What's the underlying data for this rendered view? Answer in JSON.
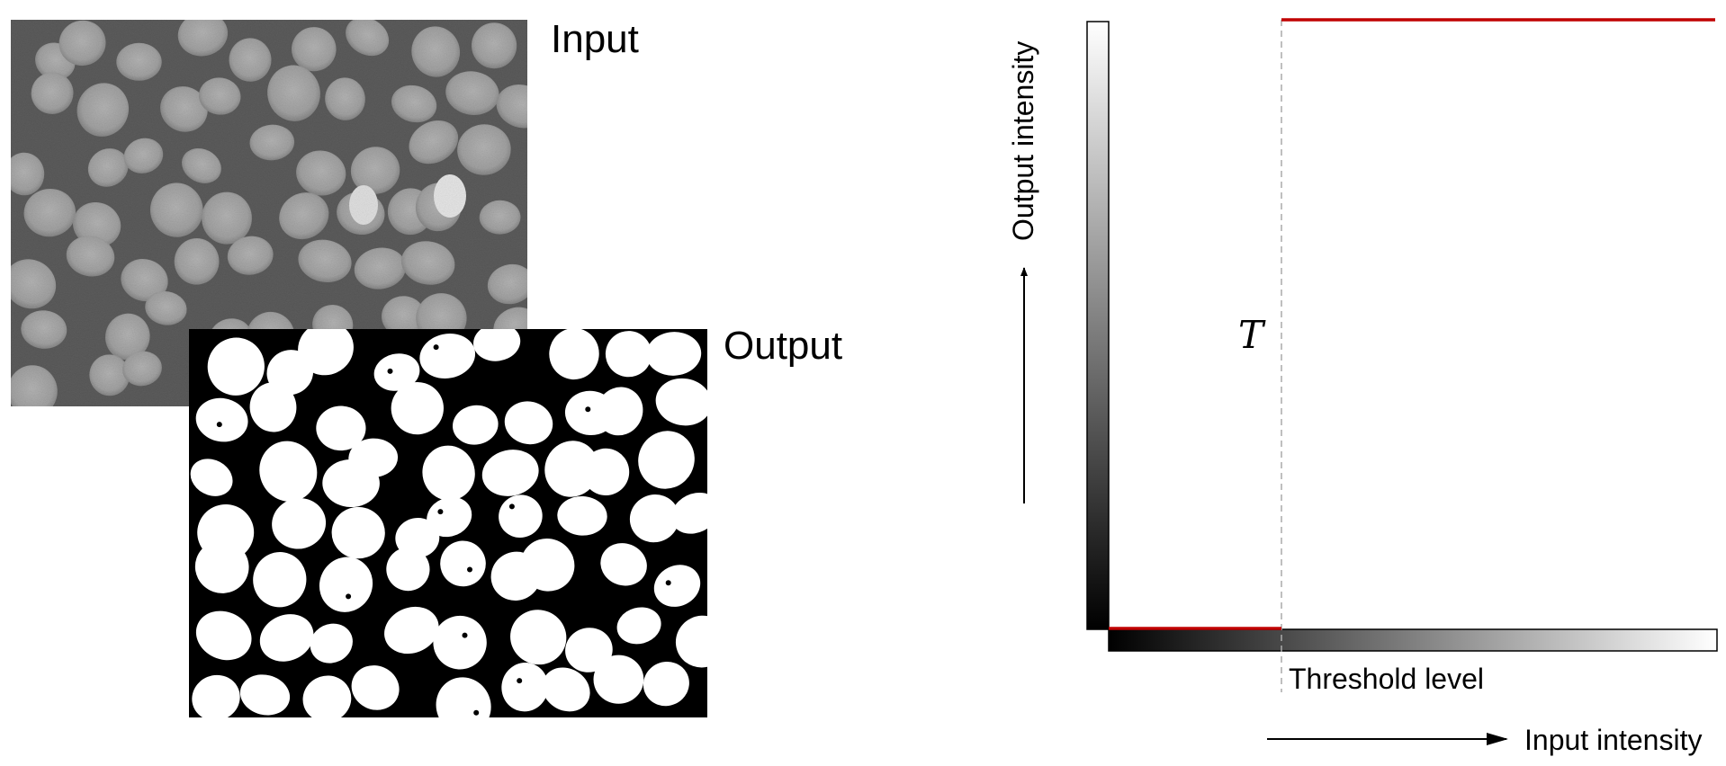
{
  "labels": {
    "input": "Input",
    "output": "Output",
    "output_axis": "Output intensity",
    "input_axis": "Input intensity",
    "threshold_level": "Threshold level",
    "threshold_symbol": "T"
  },
  "colors": {
    "transfer_curve": "#c00000",
    "threshold_line": "#aaaaaa",
    "input_background": "#5a5a5a",
    "input_nuclei": "#a8a8a8",
    "output_background": "#000000",
    "output_foreground": "#ffffff"
  },
  "icons": {
    "vertical_arrow": "arrow-up-icon",
    "horizontal_arrow": "arrow-right-icon"
  }
}
